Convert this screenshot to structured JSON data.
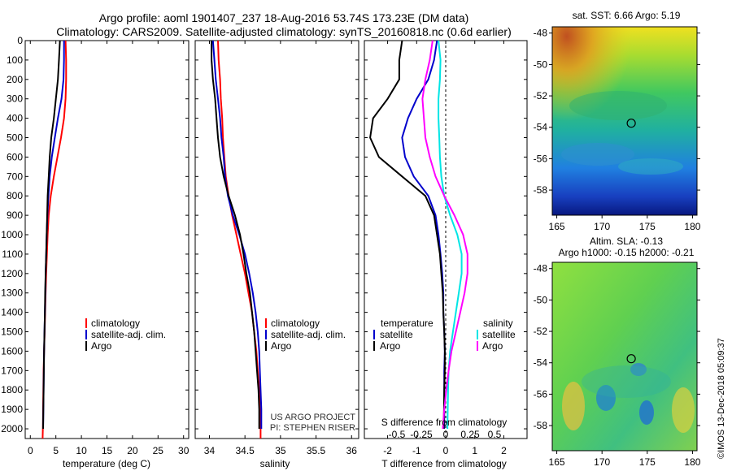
{
  "header": {
    "line1": "Argo profile: aoml 1901407_237 18-Aug-2016 53.74S 173.23E (DM data)",
    "line2": "Climatology: CARS2009. Satellite-adjusted climatology: synTS_20160818.nc (0.6d earlier)"
  },
  "credit": {
    "project": "US ARGO PROJECT",
    "pi": "PI: STEPHEN RISER",
    "imos": "©IMOS 13-Dec-2018 05:09:37"
  },
  "colors": {
    "climatology": "#ff0000",
    "satellite": "#0000cc",
    "argo": "#000000",
    "salinity_sat": "#00e5e5",
    "salinity_clim": "#ff00ff"
  },
  "chart_data": [
    {
      "type": "line",
      "xlabel": "temperature (deg C)",
      "ylabel": "",
      "xlim": [
        -1,
        31
      ],
      "ylim": [
        2050,
        0
      ],
      "xticks": [
        0,
        5,
        10,
        15,
        20,
        25,
        30
      ],
      "yticks": [
        0,
        100,
        200,
        300,
        400,
        500,
        600,
        700,
        800,
        900,
        1000,
        1100,
        1200,
        1300,
        1400,
        1500,
        1600,
        1700,
        1800,
        1900,
        2000
      ],
      "legend": [
        "climatology",
        "satellite-adj. clim.",
        "Argo"
      ],
      "series": [
        {
          "name": "climatology",
          "color": "#ff0000",
          "points": [
            [
              6.9,
              0
            ],
            [
              7.0,
              100
            ],
            [
              7.0,
              200
            ],
            [
              6.9,
              300
            ],
            [
              6.6,
              400
            ],
            [
              6.0,
              500
            ],
            [
              5.3,
              600
            ],
            [
              4.6,
              700
            ],
            [
              4.0,
              800
            ],
            [
              3.6,
              900
            ],
            [
              3.4,
              1000
            ],
            [
              3.25,
              1100
            ],
            [
              3.1,
              1200
            ],
            [
              3.0,
              1300
            ],
            [
              2.9,
              1400
            ],
            [
              2.8,
              1500
            ],
            [
              2.7,
              1600
            ],
            [
              2.6,
              1700
            ],
            [
              2.55,
              1800
            ],
            [
              2.5,
              1900
            ],
            [
              2.45,
              2000
            ],
            [
              2.4,
              2050
            ]
          ]
        },
        {
          "name": "satellite-adj. clim.",
          "color": "#0000cc",
          "points": [
            [
              6.6,
              0
            ],
            [
              6.6,
              100
            ],
            [
              6.5,
              200
            ],
            [
              6.1,
              300
            ],
            [
              5.4,
              400
            ],
            [
              4.8,
              500
            ],
            [
              4.2,
              600
            ],
            [
              3.8,
              700
            ],
            [
              3.55,
              800
            ],
            [
              3.35,
              900
            ],
            [
              3.2,
              1000
            ],
            [
              3.1,
              1100
            ],
            [
              3.0,
              1200
            ],
            [
              2.95,
              1300
            ],
            [
              2.85,
              1400
            ],
            [
              2.78,
              1500
            ],
            [
              2.7,
              1600
            ],
            [
              2.65,
              1700
            ],
            [
              2.6,
              1800
            ],
            [
              2.55,
              1900
            ],
            [
              2.5,
              2000
            ]
          ]
        },
        {
          "name": "Argo",
          "color": "#000000",
          "points": [
            [
              5.8,
              0
            ],
            [
              5.6,
              100
            ],
            [
              5.4,
              200
            ],
            [
              5.0,
              300
            ],
            [
              4.6,
              400
            ],
            [
              4.1,
              500
            ],
            [
              3.8,
              600
            ],
            [
              3.6,
              700
            ],
            [
              3.4,
              800
            ],
            [
              3.3,
              900
            ],
            [
              3.2,
              1000
            ],
            [
              3.1,
              1100
            ],
            [
              3.0,
              1200
            ],
            [
              2.9,
              1300
            ],
            [
              2.85,
              1400
            ],
            [
              2.78,
              1500
            ],
            [
              2.7,
              1600
            ],
            [
              2.65,
              1700
            ],
            [
              2.6,
              1800
            ],
            [
              2.55,
              1900
            ],
            [
              2.5,
              2000
            ]
          ]
        }
      ]
    },
    {
      "type": "line",
      "xlabel": "salinity",
      "xlim": [
        33.8,
        36.1
      ],
      "ylim": [
        2050,
        0
      ],
      "xticks": [
        34,
        34.5,
        35,
        35.5,
        36
      ],
      "legend": [
        "climatology",
        "satellite-adj. clim.",
        "Argo"
      ],
      "series": [
        {
          "name": "climatology",
          "color": "#ff0000",
          "points": [
            [
              34.12,
              0
            ],
            [
              34.13,
              100
            ],
            [
              34.15,
              200
            ],
            [
              34.16,
              300
            ],
            [
              34.18,
              400
            ],
            [
              34.19,
              500
            ],
            [
              34.21,
              600
            ],
            [
              34.23,
              700
            ],
            [
              34.27,
              800
            ],
            [
              34.32,
              900
            ],
            [
              34.38,
              1000
            ],
            [
              34.44,
              1100
            ],
            [
              34.5,
              1200
            ],
            [
              34.55,
              1300
            ],
            [
              34.6,
              1400
            ],
            [
              34.63,
              1500
            ],
            [
              34.66,
              1600
            ],
            [
              34.68,
              1700
            ],
            [
              34.7,
              1800
            ],
            [
              34.71,
              1900
            ],
            [
              34.72,
              2000
            ],
            [
              34.72,
              2050
            ]
          ]
        },
        {
          "name": "satellite-adj. clim.",
          "color": "#0000cc",
          "points": [
            [
              34.05,
              0
            ],
            [
              34.07,
              100
            ],
            [
              34.09,
              200
            ],
            [
              34.12,
              300
            ],
            [
              34.15,
              400
            ],
            [
              34.17,
              500
            ],
            [
              34.2,
              600
            ],
            [
              34.22,
              700
            ],
            [
              34.26,
              800
            ],
            [
              34.33,
              900
            ],
            [
              34.42,
              1000
            ],
            [
              34.5,
              1100
            ],
            [
              34.56,
              1200
            ],
            [
              34.61,
              1300
            ],
            [
              34.65,
              1400
            ],
            [
              34.68,
              1500
            ],
            [
              34.7,
              1600
            ],
            [
              34.71,
              1700
            ],
            [
              34.72,
              1800
            ],
            [
              34.73,
              1900
            ],
            [
              34.73,
              2000
            ]
          ]
        },
        {
          "name": "Argo",
          "color": "#000000",
          "points": [
            [
              34.03,
              0
            ],
            [
              34.03,
              100
            ],
            [
              34.05,
              200
            ],
            [
              34.08,
              300
            ],
            [
              34.1,
              400
            ],
            [
              34.12,
              500
            ],
            [
              34.15,
              600
            ],
            [
              34.2,
              700
            ],
            [
              34.27,
              800
            ],
            [
              34.36,
              900
            ],
            [
              34.43,
              1000
            ],
            [
              34.48,
              1100
            ],
            [
              34.52,
              1200
            ],
            [
              34.57,
              1300
            ],
            [
              34.6,
              1400
            ],
            [
              34.63,
              1500
            ],
            [
              34.65,
              1600
            ],
            [
              34.67,
              1700
            ],
            [
              34.69,
              1800
            ],
            [
              34.7,
              1900
            ],
            [
              34.7,
              2000
            ]
          ]
        }
      ]
    },
    {
      "type": "line",
      "xlabel": "T difference from climatology",
      "xlabel2": "S difference from climatology",
      "xlim": [
        -2.8,
        2.8
      ],
      "ylim": [
        2050,
        0
      ],
      "xticks": [
        -2,
        -1,
        0,
        1,
        2
      ],
      "xticks2": [
        "-0.5",
        "-0.25",
        "0",
        "0.25",
        "0.5"
      ],
      "legend_left": [
        "temperature",
        "satellite",
        "Argo"
      ],
      "legend_right": [
        "salinity",
        "satellite",
        "Argo"
      ],
      "series": [
        {
          "name": "satellite",
          "color": "#0000cc",
          "points": [
            [
              -0.3,
              0
            ],
            [
              -0.4,
              100
            ],
            [
              -0.6,
              200
            ],
            [
              -1.0,
              300
            ],
            [
              -1.3,
              400
            ],
            [
              -1.5,
              500
            ],
            [
              -1.4,
              600
            ],
            [
              -1.1,
              700
            ],
            [
              -0.6,
              800
            ],
            [
              -0.35,
              900
            ],
            [
              -0.25,
              1000
            ],
            [
              -0.18,
              1100
            ],
            [
              -0.12,
              1200
            ],
            [
              -0.08,
              1300
            ],
            [
              -0.08,
              1400
            ],
            [
              -0.05,
              1500
            ],
            [
              -0.03,
              1600
            ],
            [
              -0.05,
              1700
            ],
            [
              -0.05,
              1800
            ],
            [
              -0.05,
              1900
            ],
            [
              -0.05,
              2000
            ]
          ]
        },
        {
          "name": "Argo",
          "color": "#000000",
          "points": [
            [
              -1.5,
              0
            ],
            [
              -1.6,
              100
            ],
            [
              -1.6,
              200
            ],
            [
              -2.0,
              300
            ],
            [
              -2.5,
              400
            ],
            [
              -2.6,
              500
            ],
            [
              -2.3,
              600
            ],
            [
              -1.5,
              700
            ],
            [
              -0.7,
              800
            ],
            [
              -0.4,
              900
            ],
            [
              -0.3,
              1000
            ],
            [
              -0.2,
              1100
            ],
            [
              -0.15,
              1200
            ],
            [
              -0.1,
              1300
            ],
            [
              -0.08,
              1400
            ],
            [
              -0.05,
              1500
            ],
            [
              -0.03,
              1600
            ],
            [
              -0.03,
              1700
            ],
            [
              -0.05,
              1800
            ],
            [
              -0.06,
              1900
            ],
            [
              -0.07,
              2000
            ]
          ]
        },
        {
          "name": "satellite (S)",
          "color": "#00e5e5",
          "points": [
            [
              -0.25,
              0
            ],
            [
              -0.18,
              100
            ],
            [
              -0.2,
              200
            ],
            [
              -0.25,
              300
            ],
            [
              -0.25,
              400
            ],
            [
              -0.22,
              500
            ],
            [
              -0.2,
              600
            ],
            [
              -0.15,
              700
            ],
            [
              -0.05,
              800
            ],
            [
              0.15,
              900
            ],
            [
              0.4,
              1000
            ],
            [
              0.55,
              1100
            ],
            [
              0.55,
              1200
            ],
            [
              0.45,
              1300
            ],
            [
              0.35,
              1400
            ],
            [
              0.25,
              1500
            ],
            [
              0.15,
              1600
            ],
            [
              0.1,
              1700
            ],
            [
              0.08,
              1800
            ],
            [
              0.07,
              1900
            ],
            [
              0.06,
              2000
            ]
          ]
        },
        {
          "name": "Argo (S)",
          "color": "#ff00ff",
          "points": [
            [
              -0.45,
              0
            ],
            [
              -0.55,
              100
            ],
            [
              -0.7,
              200
            ],
            [
              -0.8,
              300
            ],
            [
              -0.75,
              400
            ],
            [
              -0.7,
              500
            ],
            [
              -0.55,
              600
            ],
            [
              -0.35,
              700
            ],
            [
              -0.05,
              800
            ],
            [
              0.3,
              900
            ],
            [
              0.6,
              1000
            ],
            [
              0.75,
              1100
            ],
            [
              0.75,
              1200
            ],
            [
              0.65,
              1300
            ],
            [
              0.5,
              1400
            ],
            [
              0.35,
              1500
            ],
            [
              0.2,
              1600
            ],
            [
              0.1,
              1700
            ],
            [
              0.02,
              1800
            ],
            [
              -0.05,
              1900
            ],
            [
              -0.1,
              2000
            ]
          ]
        }
      ]
    },
    {
      "type": "heatmap",
      "title": "sat. SST: 6.66 Argo: 5.19",
      "xlim": [
        164.5,
        180.5
      ],
      "ylim": [
        -59.6,
        -47.6
      ],
      "xticks": [
        165,
        170,
        175,
        180
      ],
      "yticks": [
        -48,
        -50,
        -52,
        -54,
        -56,
        -58
      ],
      "marker": {
        "lon": 173.23,
        "lat": -53.74
      }
    },
    {
      "type": "heatmap",
      "title": "Altim. SLA: -0.13",
      "subtitle": "Argo h1000: -0.15 h2000: -0.21",
      "xlim": [
        164.5,
        180.5
      ],
      "ylim": [
        -59.6,
        -47.6
      ],
      "xticks": [
        165,
        170,
        175,
        180
      ],
      "yticks": [
        -48,
        -50,
        -52,
        -54,
        -56,
        -58
      ],
      "marker": {
        "lon": 173.23,
        "lat": -53.74
      }
    }
  ]
}
